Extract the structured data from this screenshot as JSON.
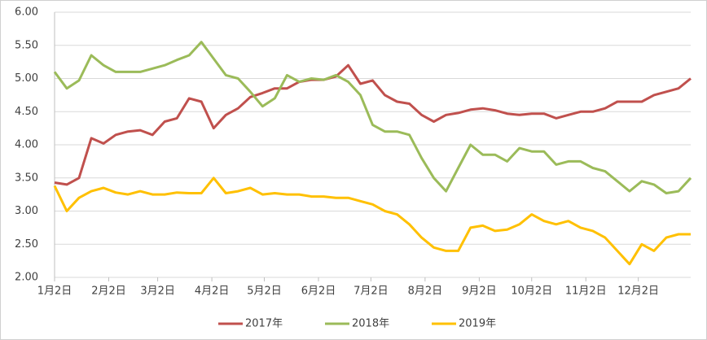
{
  "chart_data": {
    "type": "line",
    "x": [
      0,
      7,
      14,
      21,
      28,
      35,
      42,
      49,
      56,
      63,
      70,
      77,
      84,
      91,
      98,
      105,
      112,
      119,
      126,
      133,
      140,
      147,
      154,
      161,
      168,
      175,
      182,
      189,
      196,
      203,
      210,
      217,
      224,
      231,
      238,
      245,
      252,
      259,
      266,
      273,
      280,
      287,
      294,
      301,
      308,
      315,
      322,
      329,
      336,
      343,
      350,
      357,
      364
    ],
    "series": [
      {
        "name": "2017年",
        "color": "#c0504d",
        "values": [
          3.43,
          3.4,
          3.5,
          4.1,
          4.02,
          4.15,
          4.2,
          4.22,
          4.15,
          4.35,
          4.4,
          4.7,
          4.65,
          4.25,
          4.45,
          4.55,
          4.72,
          4.78,
          4.85,
          4.85,
          4.95,
          4.98,
          4.98,
          5.03,
          5.2,
          4.92,
          4.97,
          4.75,
          4.65,
          4.62,
          4.45,
          4.35,
          4.45,
          4.48,
          4.53,
          4.55,
          4.52,
          4.47,
          4.45,
          4.47,
          4.47,
          4.4,
          4.45,
          4.5,
          4.5,
          4.55,
          4.65,
          4.65,
          4.65,
          4.75,
          4.8,
          4.85,
          5.0
        ]
      },
      {
        "name": "2018年",
        "color": "#9bbb59",
        "values": [
          5.1,
          4.85,
          4.97,
          5.35,
          5.2,
          5.1,
          5.1,
          5.1,
          5.15,
          5.2,
          5.28,
          5.35,
          5.55,
          5.3,
          5.05,
          5.0,
          4.8,
          4.58,
          4.7,
          5.05,
          4.95,
          5.0,
          4.98,
          5.05,
          4.95,
          4.75,
          4.3,
          4.2,
          4.2,
          4.15,
          3.8,
          3.5,
          3.3,
          3.65,
          4.0,
          3.85,
          3.85,
          3.75,
          3.95,
          3.9,
          3.9,
          3.7,
          3.75,
          3.75,
          3.65,
          3.6,
          3.45,
          3.3,
          3.45,
          3.4,
          3.27,
          3.3,
          3.5
        ]
      },
      {
        "name": "2019年",
        "color": "#ffc000",
        "values": [
          3.38,
          3.0,
          3.2,
          3.3,
          3.35,
          3.28,
          3.25,
          3.3,
          3.25,
          3.25,
          3.28,
          3.27,
          3.27,
          3.5,
          3.27,
          3.3,
          3.35,
          3.25,
          3.27,
          3.25,
          3.25,
          3.22,
          3.22,
          3.2,
          3.2,
          3.15,
          3.1,
          3.0,
          2.95,
          2.8,
          2.6,
          2.45,
          2.4,
          2.4,
          2.75,
          2.78,
          2.7,
          2.72,
          2.8,
          2.95,
          2.85,
          2.8,
          2.85,
          2.75,
          2.7,
          2.6,
          2.4,
          2.2,
          2.5,
          2.4,
          2.6,
          2.65,
          2.65
        ]
      }
    ],
    "xlim": [
      0,
      364
    ],
    "xticks": [
      {
        "value": 0,
        "label": "1月2日"
      },
      {
        "value": 31,
        "label": "2月2日"
      },
      {
        "value": 59,
        "label": "3月2日"
      },
      {
        "value": 90,
        "label": "4月2日"
      },
      {
        "value": 120,
        "label": "5月2日"
      },
      {
        "value": 151,
        "label": "6月2日"
      },
      {
        "value": 181,
        "label": "7月2日"
      },
      {
        "value": 212,
        "label": "8月2日"
      },
      {
        "value": 243,
        "label": "9月2日"
      },
      {
        "value": 273,
        "label": "10月2日"
      },
      {
        "value": 304,
        "label": "11月2日"
      },
      {
        "value": 334,
        "label": "12月2日"
      }
    ],
    "ylim": [
      2,
      6
    ],
    "yticks": [
      {
        "value": 2,
        "label": "2.00"
      },
      {
        "value": 2.5,
        "label": "2.50"
      },
      {
        "value": 3,
        "label": "3.00"
      },
      {
        "value": 3.5,
        "label": "3.50"
      },
      {
        "value": 4,
        "label": "4.00"
      },
      {
        "value": 4.5,
        "label": "4.50"
      },
      {
        "value": 5,
        "label": "5.00"
      },
      {
        "value": 5.5,
        "label": "5.50"
      },
      {
        "value": 6,
        "label": "6.00"
      }
    ],
    "grid": true,
    "legend": "bottom"
  }
}
